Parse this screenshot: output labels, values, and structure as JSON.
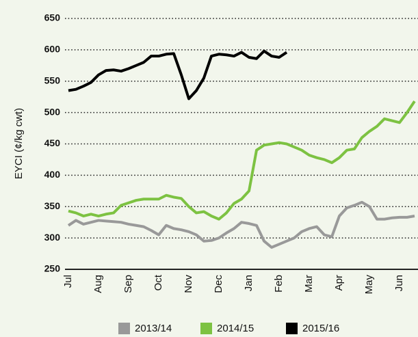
{
  "chart_data": {
    "type": "line",
    "y_label": "EYCI (¢/kg cwt)",
    "categories": [
      "Jul",
      null,
      null,
      null,
      "Aug",
      null,
      null,
      null,
      "Sep",
      null,
      null,
      null,
      "Oct",
      null,
      null,
      null,
      "Nov",
      null,
      null,
      null,
      "Dec",
      null,
      null,
      null,
      "Jan",
      null,
      null,
      null,
      "Feb",
      null,
      null,
      null,
      "Mar",
      null,
      null,
      null,
      "Apr",
      null,
      null,
      null,
      "May",
      null,
      null,
      null,
      "Jun",
      null,
      null
    ],
    "series": [
      {
        "name": "2013/14",
        "color": "#999999",
        "values": [
          320,
          328,
          322,
          325,
          328,
          327,
          326,
          325,
          322,
          320,
          318,
          312,
          305,
          320,
          315,
          313,
          310,
          305,
          295,
          296,
          300,
          308,
          315,
          325,
          323,
          320,
          295,
          285,
          290,
          295,
          300,
          310,
          315,
          318,
          305,
          302,
          335,
          348,
          352,
          357,
          350,
          330,
          330,
          332,
          333,
          333,
          335
        ]
      },
      {
        "name": "2014/15",
        "color": "#7dc242",
        "values": [
          343,
          340,
          335,
          338,
          335,
          338,
          340,
          352,
          356,
          360,
          362,
          362,
          362,
          368,
          365,
          363,
          350,
          340,
          342,
          335,
          330,
          340,
          355,
          362,
          375,
          440,
          448,
          450,
          452,
          450,
          445,
          440,
          432,
          428,
          425,
          420,
          428,
          440,
          442,
          460,
          470,
          478,
          490,
          487,
          484,
          500,
          518
        ]
      },
      {
        "name": "2015/16",
        "color": "#000000",
        "values": [
          535,
          537,
          542,
          548,
          560,
          567,
          568,
          566,
          570,
          575,
          580,
          590,
          590,
          593,
          594,
          560,
          522,
          535,
          555,
          590,
          593,
          592,
          590,
          596,
          588,
          586,
          598,
          590,
          588,
          596,
          null,
          null,
          null,
          null,
          null,
          null,
          null,
          null,
          null,
          null,
          null,
          null,
          null,
          null,
          null,
          null,
          null
        ]
      }
    ],
    "ylim": [
      250,
      650
    ],
    "yticks": [
      250,
      300,
      350,
      400,
      450,
      500,
      550,
      600,
      650
    ],
    "grid": true,
    "legend": "bottom"
  }
}
